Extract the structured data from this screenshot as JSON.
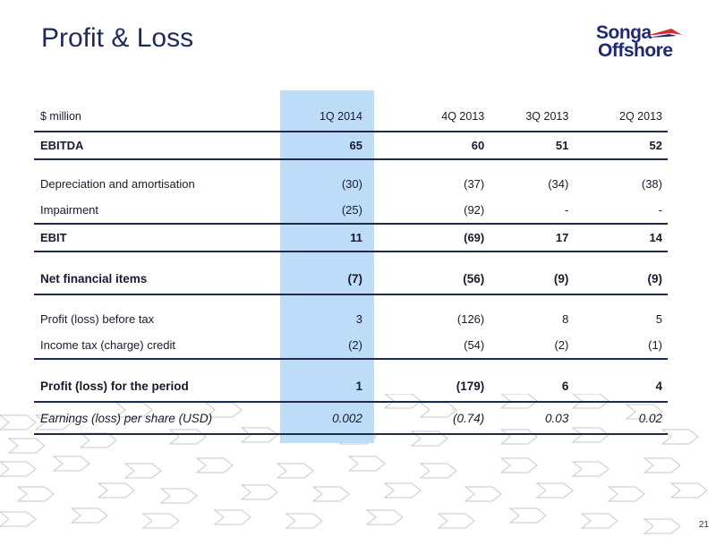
{
  "slide": {
    "title": "Profit & Loss",
    "page_number": "21"
  },
  "logo": {
    "line1": "Songa",
    "line2": "Offshore"
  },
  "table": {
    "unit_label": "$ million",
    "columns": [
      "1Q 2014",
      "4Q 2013",
      "3Q 2013",
      "2Q 2013"
    ],
    "rows": {
      "ebitda": {
        "label": "EBITDA",
        "values": [
          "65",
          "60",
          "51",
          "52"
        ]
      },
      "depreciation": {
        "label": "Depreciation and amortisation",
        "values": [
          "(30)",
          "(37)",
          "(34)",
          "(38)"
        ]
      },
      "impairment": {
        "label": "Impairment",
        "values": [
          "(25)",
          "(92)",
          "-",
          "-"
        ]
      },
      "ebit": {
        "label": "EBIT",
        "values": [
          "11",
          "(69)",
          "17",
          "14"
        ]
      },
      "net_financial": {
        "label": "Net financial items",
        "values": [
          "(7)",
          "(56)",
          "(9)",
          "(9)"
        ]
      },
      "pbt": {
        "label": "Profit (loss) before tax",
        "values": [
          "3",
          "(126)",
          "8",
          "5"
        ]
      },
      "tax": {
        "label": "Income tax (charge) credit",
        "values": [
          "(2)",
          "(54)",
          "(2)",
          "(1)"
        ]
      },
      "profit_period": {
        "label": "Profit (loss) for the period",
        "values": [
          "1",
          "(179)",
          "6",
          "4"
        ]
      },
      "eps": {
        "label": "Earnings (loss) per share (USD)",
        "values": [
          "0.002",
          "(0.74)",
          "0.03",
          "0.02"
        ]
      }
    }
  },
  "colors": {
    "title": "#1f2a5c",
    "highlight_column": "#bddcf7",
    "logo_navy": "#1f2a6e",
    "logo_red": "#d62b2b"
  }
}
